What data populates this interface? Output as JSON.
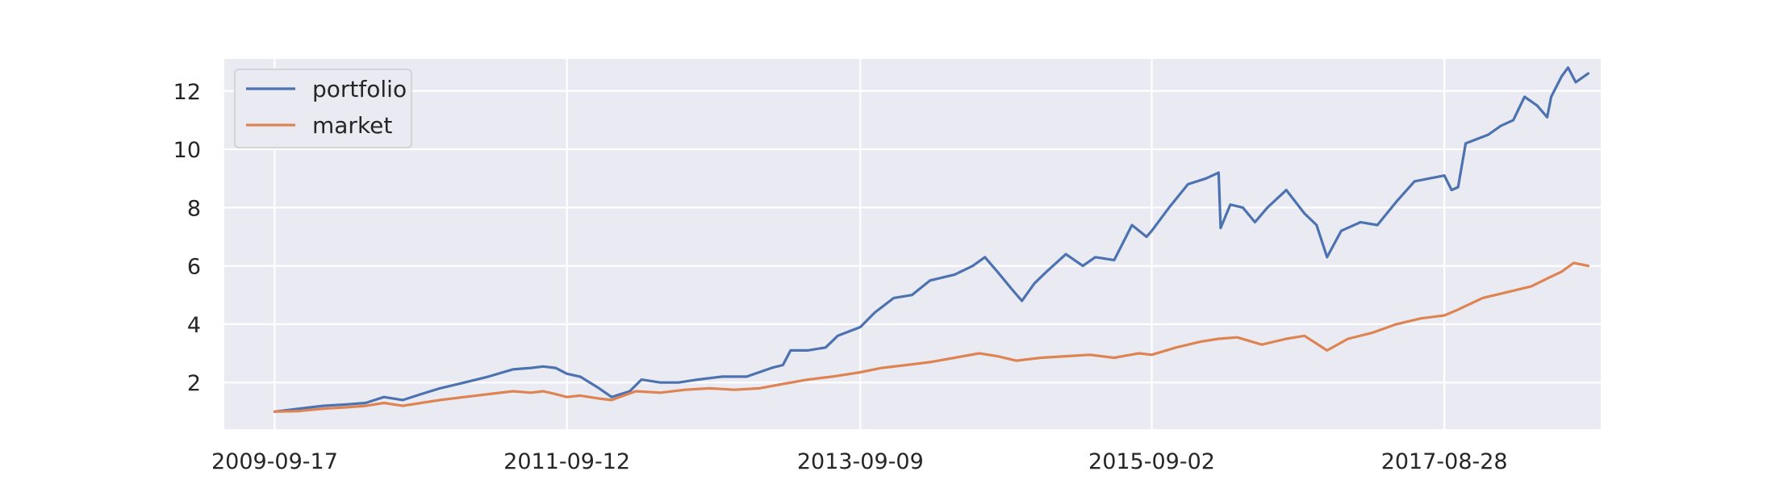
{
  "chart_data": {
    "type": "line",
    "title": "",
    "xlabel": "",
    "ylabel": "",
    "x_type": "date",
    "xlim": [
      "2009-05-15",
      "2018-09-20"
    ],
    "ylim": [
      0.4,
      13.1
    ],
    "x_ticks": [
      "2009-09-17",
      "2011-09-12",
      "2013-09-09",
      "2015-09-02",
      "2017-08-28"
    ],
    "y_ticks": [
      2,
      4,
      6,
      8,
      10,
      12
    ],
    "grid": true,
    "legend": "upper-left",
    "background": "#eaeaf2",
    "series": [
      {
        "name": "portfolio",
        "color": "#4c72b0",
        "points": [
          [
            "2009-09-17",
            1.0
          ],
          [
            "2009-11-15",
            1.1
          ],
          [
            "2010-01-15",
            1.2
          ],
          [
            "2010-03-15",
            1.25
          ],
          [
            "2010-05-01",
            1.3
          ],
          [
            "2010-06-15",
            1.5
          ],
          [
            "2010-08-01",
            1.4
          ],
          [
            "2010-09-15",
            1.6
          ],
          [
            "2010-11-01",
            1.8
          ],
          [
            "2011-01-01",
            2.0
          ],
          [
            "2011-03-01",
            2.2
          ],
          [
            "2011-05-01",
            2.45
          ],
          [
            "2011-06-15",
            2.5
          ],
          [
            "2011-07-15",
            2.55
          ],
          [
            "2011-08-15",
            2.5
          ],
          [
            "2011-09-12",
            2.3
          ],
          [
            "2011-10-15",
            2.2
          ],
          [
            "2011-12-01",
            1.8
          ],
          [
            "2012-01-01",
            1.5
          ],
          [
            "2012-02-15",
            1.7
          ],
          [
            "2012-03-15",
            2.1
          ],
          [
            "2012-05-01",
            2.0
          ],
          [
            "2012-06-15",
            2.0
          ],
          [
            "2012-08-01",
            2.1
          ],
          [
            "2012-10-01",
            2.2
          ],
          [
            "2012-12-01",
            2.2
          ],
          [
            "2013-02-01",
            2.5
          ],
          [
            "2013-03-01",
            2.6
          ],
          [
            "2013-03-20",
            3.1
          ],
          [
            "2013-05-01",
            3.1
          ],
          [
            "2013-06-15",
            3.2
          ],
          [
            "2013-07-15",
            3.6
          ],
          [
            "2013-09-09",
            3.9
          ],
          [
            "2013-10-15",
            4.4
          ],
          [
            "2013-12-01",
            4.9
          ],
          [
            "2014-01-15",
            5.0
          ],
          [
            "2014-03-01",
            5.5
          ],
          [
            "2014-05-01",
            5.7
          ],
          [
            "2014-06-15",
            6.0
          ],
          [
            "2014-07-15",
            6.3
          ],
          [
            "2014-08-15",
            5.8
          ],
          [
            "2014-09-20",
            5.2
          ],
          [
            "2014-10-15",
            4.8
          ],
          [
            "2014-11-15",
            5.4
          ],
          [
            "2014-12-15",
            5.8
          ],
          [
            "2015-02-01",
            6.4
          ],
          [
            "2015-03-15",
            6.0
          ],
          [
            "2015-04-15",
            6.3
          ],
          [
            "2015-06-01",
            6.2
          ],
          [
            "2015-07-15",
            7.4
          ],
          [
            "2015-08-20",
            7.0
          ],
          [
            "2015-09-02",
            7.2
          ],
          [
            "2015-10-15",
            8.0
          ],
          [
            "2015-12-01",
            8.8
          ],
          [
            "2016-01-15",
            9.0
          ],
          [
            "2016-02-15",
            9.2
          ],
          [
            "2016-02-20",
            7.3
          ],
          [
            "2016-03-15",
            8.1
          ],
          [
            "2016-04-15",
            8.0
          ],
          [
            "2016-05-15",
            7.5
          ],
          [
            "2016-06-15",
            8.0
          ],
          [
            "2016-08-01",
            8.6
          ],
          [
            "2016-09-15",
            7.8
          ],
          [
            "2016-10-15",
            7.4
          ],
          [
            "2016-11-10",
            6.3
          ],
          [
            "2016-12-15",
            7.2
          ],
          [
            "2017-02-01",
            7.5
          ],
          [
            "2017-03-15",
            7.4
          ],
          [
            "2017-05-01",
            8.2
          ],
          [
            "2017-06-15",
            8.9
          ],
          [
            "2017-08-28",
            9.1
          ],
          [
            "2017-09-15",
            8.6
          ],
          [
            "2017-10-01",
            8.7
          ],
          [
            "2017-10-20",
            10.2
          ],
          [
            "2017-12-15",
            10.5
          ],
          [
            "2018-01-15",
            10.8
          ],
          [
            "2018-02-15",
            11.0
          ],
          [
            "2018-03-15",
            11.8
          ],
          [
            "2018-04-15",
            11.5
          ],
          [
            "2018-05-10",
            11.1
          ],
          [
            "2018-05-20",
            11.8
          ],
          [
            "2018-06-15",
            12.5
          ],
          [
            "2018-07-01",
            12.8
          ],
          [
            "2018-07-20",
            12.3
          ],
          [
            "2018-08-20",
            12.6
          ]
        ]
      },
      {
        "name": "market",
        "color": "#dd8452",
        "points": [
          [
            "2009-09-17",
            1.0
          ],
          [
            "2009-11-15",
            1.02
          ],
          [
            "2010-01-15",
            1.1
          ],
          [
            "2010-03-15",
            1.15
          ],
          [
            "2010-05-01",
            1.2
          ],
          [
            "2010-06-15",
            1.3
          ],
          [
            "2010-08-01",
            1.2
          ],
          [
            "2010-09-15",
            1.3
          ],
          [
            "2010-11-01",
            1.4
          ],
          [
            "2011-01-01",
            1.5
          ],
          [
            "2011-03-01",
            1.6
          ],
          [
            "2011-05-01",
            1.7
          ],
          [
            "2011-06-15",
            1.65
          ],
          [
            "2011-07-15",
            1.7
          ],
          [
            "2011-08-15",
            1.6
          ],
          [
            "2011-09-12",
            1.5
          ],
          [
            "2011-10-15",
            1.55
          ],
          [
            "2011-12-01",
            1.45
          ],
          [
            "2012-01-01",
            1.4
          ],
          [
            "2012-03-01",
            1.7
          ],
          [
            "2012-05-01",
            1.65
          ],
          [
            "2012-07-01",
            1.75
          ],
          [
            "2012-09-01",
            1.8
          ],
          [
            "2012-11-01",
            1.75
          ],
          [
            "2013-01-01",
            1.8
          ],
          [
            "2013-03-01",
            1.95
          ],
          [
            "2013-05-01",
            2.1
          ],
          [
            "2013-07-01",
            2.2
          ],
          [
            "2013-09-09",
            2.35
          ],
          [
            "2013-11-01",
            2.5
          ],
          [
            "2014-01-01",
            2.6
          ],
          [
            "2014-03-01",
            2.7
          ],
          [
            "2014-05-01",
            2.85
          ],
          [
            "2014-07-01",
            3.0
          ],
          [
            "2014-08-15",
            2.9
          ],
          [
            "2014-10-01",
            2.75
          ],
          [
            "2014-12-01",
            2.85
          ],
          [
            "2015-02-01",
            2.9
          ],
          [
            "2015-04-01",
            2.95
          ],
          [
            "2015-06-01",
            2.85
          ],
          [
            "2015-08-01",
            3.0
          ],
          [
            "2015-09-02",
            2.95
          ],
          [
            "2015-11-01",
            3.2
          ],
          [
            "2016-01-01",
            3.4
          ],
          [
            "2016-02-15",
            3.5
          ],
          [
            "2016-04-01",
            3.55
          ],
          [
            "2016-06-01",
            3.3
          ],
          [
            "2016-08-01",
            3.5
          ],
          [
            "2016-09-15",
            3.6
          ],
          [
            "2016-11-10",
            3.1
          ],
          [
            "2017-01-01",
            3.5
          ],
          [
            "2017-03-01",
            3.7
          ],
          [
            "2017-05-01",
            4.0
          ],
          [
            "2017-07-01",
            4.2
          ],
          [
            "2017-08-28",
            4.3
          ],
          [
            "2017-10-01",
            4.5
          ],
          [
            "2017-12-01",
            4.9
          ],
          [
            "2018-02-01",
            5.1
          ],
          [
            "2018-04-01",
            5.3
          ],
          [
            "2018-05-15",
            5.6
          ],
          [
            "2018-06-15",
            5.8
          ],
          [
            "2018-07-15",
            6.1
          ],
          [
            "2018-08-20",
            6.0
          ]
        ]
      }
    ]
  }
}
